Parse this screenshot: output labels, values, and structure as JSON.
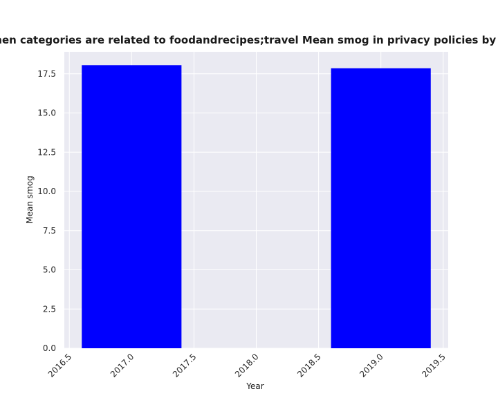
{
  "chart_data": {
    "type": "bar",
    "title": "when categories are related to foodandrecipes;travel Mean smog in privacy policies by Year",
    "xlabel": "Year",
    "ylabel": "Mean smog",
    "x": [
      2017,
      2019
    ],
    "values": [
      18.05,
      17.85
    ],
    "bar_width": 0.8,
    "xlim": [
      2016.46,
      2019.54
    ],
    "ylim": [
      0,
      18.9
    ],
    "xticks": [
      2016.5,
      2017.0,
      2017.5,
      2018.0,
      2018.5,
      2019.0,
      2019.5
    ],
    "xtick_labels": [
      "2016.5",
      "2017.0",
      "2017.5",
      "2018.0",
      "2018.5",
      "2019.0",
      "2019.5"
    ],
    "yticks": [
      0,
      2.5,
      5,
      7.5,
      10,
      12.5,
      15,
      17.5
    ],
    "ytick_labels": [
      "0.0",
      "2.5",
      "5.0",
      "7.5",
      "10.0",
      "12.5",
      "15.0",
      "17.5"
    ],
    "grid": true,
    "bar_color": "#0000ff",
    "background_color": "#eaeaf2",
    "grid_color": "#ffffff"
  }
}
